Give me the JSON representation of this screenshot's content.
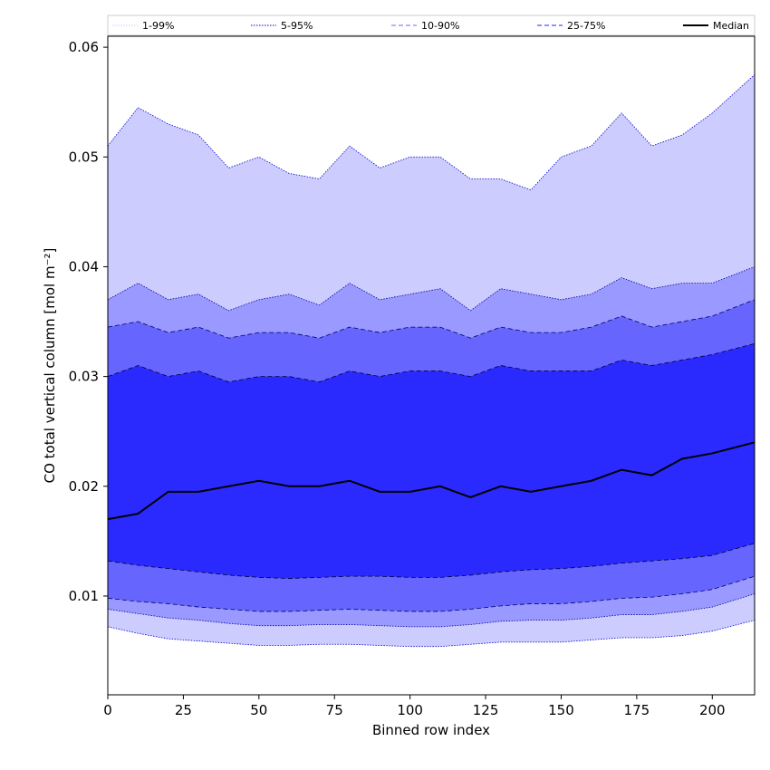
{
  "chart_data": {
    "type": "area",
    "xlabel": "Binned row index",
    "ylabel": "CO total vertical column [mol m⁻²]",
    "xlim": [
      0,
      214
    ],
    "ylim": [
      0.001,
      0.061
    ],
    "x_ticks": [
      0,
      25,
      50,
      75,
      100,
      125,
      150,
      175,
      200
    ],
    "y_ticks": [
      0.01,
      0.02,
      0.03,
      0.04,
      0.05,
      0.06
    ],
    "y_tick_labels": [
      "0.01",
      "0.02",
      "0.03",
      "0.04",
      "0.05",
      "0.06"
    ],
    "grid": false,
    "legend_position": "top",
    "legend": [
      {
        "label": "1-99%",
        "style": "dotted",
        "color": "#ccccff"
      },
      {
        "label": "5-95%",
        "style": "dotted",
        "color": "#0000cc"
      },
      {
        "label": "10-90%",
        "style": "dashed",
        "color": "#6666ff"
      },
      {
        "label": "25-75%",
        "style": "dashed",
        "color": "#2222ff"
      },
      {
        "label": "Median",
        "style": "solid",
        "color": "#000000"
      }
    ],
    "band_colors": {
      "1-99%": "#ccccff",
      "5-95%": "#9999ff",
      "10-90%": "#6666ff",
      "25-75%": "#2a2aff"
    },
    "band_edge_colors": {
      "1-99%": "#0000cc",
      "5-95%": "#000099",
      "10-90%": "#000066",
      "25-75%": "#000033"
    },
    "x": [
      0,
      10,
      20,
      30,
      40,
      50,
      60,
      70,
      80,
      90,
      100,
      110,
      120,
      130,
      140,
      150,
      160,
      170,
      180,
      190,
      200,
      214
    ],
    "series": [
      {
        "name": "1-99%",
        "lower": [
          0.0072,
          0.0066,
          0.0061,
          0.0059,
          0.0057,
          0.0055,
          0.0055,
          0.0056,
          0.0056,
          0.0055,
          0.0054,
          0.0054,
          0.0056,
          0.0058,
          0.0058,
          0.0058,
          0.006,
          0.0062,
          0.0062,
          0.0064,
          0.0068,
          0.0078
        ],
        "upper": [
          0.051,
          0.0545,
          0.053,
          0.052,
          0.049,
          0.05,
          0.0485,
          0.048,
          0.051,
          0.049,
          0.05,
          0.05,
          0.048,
          0.048,
          0.047,
          0.05,
          0.051,
          0.054,
          0.051,
          0.052,
          0.054,
          0.0575
        ]
      },
      {
        "name": "5-95%",
        "lower": [
          0.0088,
          0.0084,
          0.008,
          0.0078,
          0.0075,
          0.0073,
          0.0073,
          0.0074,
          0.0074,
          0.0073,
          0.0072,
          0.0072,
          0.0074,
          0.0077,
          0.0078,
          0.0078,
          0.008,
          0.0083,
          0.0083,
          0.0086,
          0.009,
          0.0102
        ],
        "upper": [
          0.037,
          0.0385,
          0.037,
          0.0375,
          0.036,
          0.037,
          0.0375,
          0.0365,
          0.0385,
          0.037,
          0.0375,
          0.038,
          0.036,
          0.038,
          0.0375,
          0.037,
          0.0375,
          0.039,
          0.038,
          0.0385,
          0.0385,
          0.04
        ]
      },
      {
        "name": "10-90%",
        "lower": [
          0.0098,
          0.0095,
          0.0093,
          0.009,
          0.0088,
          0.0086,
          0.0086,
          0.0087,
          0.0088,
          0.0087,
          0.0086,
          0.0086,
          0.0088,
          0.0091,
          0.0093,
          0.0093,
          0.0095,
          0.0098,
          0.0099,
          0.0102,
          0.0106,
          0.0118
        ],
        "upper": [
          0.0345,
          0.035,
          0.034,
          0.0345,
          0.0335,
          0.034,
          0.034,
          0.0335,
          0.0345,
          0.034,
          0.0345,
          0.0345,
          0.0335,
          0.0345,
          0.034,
          0.034,
          0.0345,
          0.0355,
          0.0345,
          0.035,
          0.0355,
          0.037
        ]
      },
      {
        "name": "25-75%",
        "lower": [
          0.0132,
          0.0128,
          0.0125,
          0.0122,
          0.0119,
          0.0117,
          0.0116,
          0.0117,
          0.0118,
          0.0118,
          0.0117,
          0.0117,
          0.0119,
          0.0122,
          0.0124,
          0.0125,
          0.0127,
          0.013,
          0.0132,
          0.0134,
          0.0137,
          0.0148
        ],
        "upper": [
          0.03,
          0.031,
          0.03,
          0.0305,
          0.0295,
          0.03,
          0.03,
          0.0295,
          0.0305,
          0.03,
          0.0305,
          0.0305,
          0.03,
          0.031,
          0.0305,
          0.0305,
          0.0305,
          0.0315,
          0.031,
          0.0315,
          0.032,
          0.033
        ]
      },
      {
        "name": "Median",
        "values": [
          0.017,
          0.0175,
          0.0195,
          0.0195,
          0.02,
          0.0205,
          0.02,
          0.02,
          0.0205,
          0.0195,
          0.0195,
          0.02,
          0.019,
          0.02,
          0.0195,
          0.02,
          0.0205,
          0.0215,
          0.021,
          0.0225,
          0.023,
          0.024
        ]
      }
    ]
  }
}
